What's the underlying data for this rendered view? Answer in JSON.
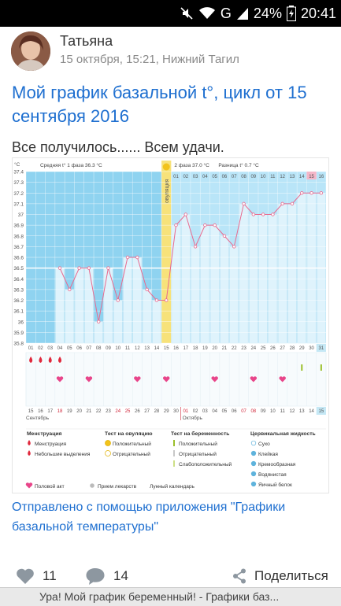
{
  "status_bar": {
    "network": "G",
    "battery": "24%",
    "time": "20:41"
  },
  "post": {
    "author_name": "Татьяна",
    "meta": "15 октября, 15:21, Нижний Тагил",
    "title": "Мой график базальной t°, цикл от 15 сентября 2016",
    "text": "Все получилось...... Всем удачи.",
    "source_link": "Отправлено с помощью приложения \"Графики базальной температуры\""
  },
  "actions": {
    "likes": "11",
    "comments": "14",
    "share_label": "Поделиться"
  },
  "bottom_bar": {
    "text": "Ура! Мой график беременный! - Графики баз..."
  },
  "chart_data": {
    "type": "line",
    "unit_label": "°C",
    "ylim": [
      35.8,
      37.4
    ],
    "y_ticks": [
      "37.4",
      "37.3",
      "37.2",
      "37.1",
      "37",
      "36.9",
      "36.8",
      "36.7",
      "36.6",
      "36.5",
      "36.4",
      "36.3",
      "36.2",
      "36.1",
      "36",
      "35.9",
      "35.8"
    ],
    "phase1_label": "Средняя t° 1 фаза 36.3 °C",
    "phase2_label": "2 фаза 37.0 °C",
    "diff_label": "Разница t° 0.7 °C",
    "ovulation_label": "овуляция",
    "cycle_days": [
      "01",
      "02",
      "03",
      "04",
      "05",
      "06",
      "07",
      "08",
      "09",
      "10",
      "11",
      "12",
      "13",
      "14",
      "15",
      "16",
      "17",
      "18",
      "19",
      "20",
      "21",
      "22",
      "23",
      "24",
      "25",
      "26",
      "27",
      "28",
      "29",
      "30",
      "31"
    ],
    "phase2_days": [
      "01",
      "02",
      "03",
      "04",
      "05",
      "06",
      "07",
      "08",
      "09",
      "10",
      "11",
      "12",
      "13",
      "14",
      "15",
      "16"
    ],
    "dates": [
      "15",
      "16",
      "17",
      "18",
      "19",
      "20",
      "21",
      "22",
      "23",
      "24",
      "25",
      "26",
      "27",
      "28",
      "29",
      "30",
      "01",
      "02",
      "03",
      "04",
      "05",
      "06",
      "07",
      "08",
      "09",
      "10",
      "11",
      "12",
      "13",
      "14",
      "15"
    ],
    "month1": "Сентябрь",
    "month2": "Октябрь",
    "series": [
      {
        "values": [
          null,
          null,
          null,
          36.5,
          36.3,
          36.5,
          36.5,
          36.0,
          36.5,
          36.2,
          36.6,
          36.6,
          36.3,
          36.2,
          36.2,
          36.9,
          37.0,
          36.7,
          36.9,
          36.9,
          36.8,
          36.7,
          37.1,
          37.0,
          37.0,
          37.0,
          37.1,
          37.1,
          37.2,
          37.2,
          37.2
        ]
      }
    ],
    "ovulation_day_index": 14,
    "menstruation_days": [
      0,
      1,
      2,
      3
    ],
    "intercourse_days": [
      3,
      6,
      11,
      14,
      19,
      23,
      26
    ],
    "lunar_day_index": 6,
    "pregnancy_test_days": [
      28,
      30
    ],
    "legend": {
      "menstruation_title": "Менструация",
      "menstruation_items": [
        "Менструация",
        "Небольшие выделения"
      ],
      "ovulation_title": "Тест на овуляцию",
      "ovulation_items": [
        "Положительный",
        "Отрицательный"
      ],
      "pregnancy_title": "Тест на беременность",
      "pregnancy_items": [
        "Положительный",
        "Отрицательный",
        "Слабоположительный"
      ],
      "cervical_title": "Цервикальная жидкость",
      "cervical_items": [
        "Сухо",
        "Клейкая",
        "Кремообразная",
        "Водянистая",
        "Яичный белок"
      ],
      "bottom_items": [
        "Половой акт",
        "Прием лекарств",
        "Лунный календарь"
      ]
    },
    "colors": {
      "phase1_bg": "#8fd3f0",
      "phase2_bg": "#b9e5f8",
      "bar_fill": "#dff3fc",
      "ovulation": "#f7e27a",
      "line": "#e86a8f",
      "menstruation": "#e0283c",
      "heart": "#e8458a",
      "test_positive": "#9bbf2a",
      "today": "#c5e8f5"
    }
  }
}
